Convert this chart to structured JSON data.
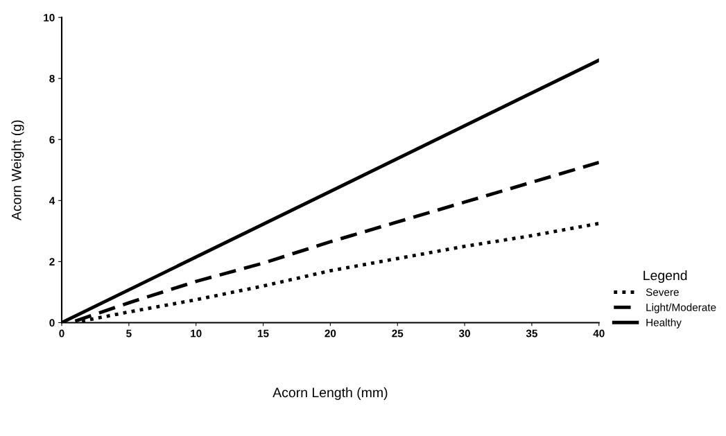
{
  "chart_data": {
    "type": "line",
    "xlabel": "Acorn Length (mm)",
    "ylabel": "Acorn Weight (g)",
    "legend_title": "Legend",
    "xlim": [
      0,
      40
    ],
    "ylim": [
      0,
      10
    ],
    "xticks": [
      0,
      5,
      10,
      15,
      20,
      25,
      30,
      35,
      40
    ],
    "yticks": [
      0,
      2,
      4,
      6,
      8,
      10
    ],
    "grid": false,
    "legend": "bottom right",
    "marker": "none",
    "series": [
      {
        "name": "Severe",
        "color": "#000000",
        "line_style": "dotted",
        "x": [
          1.5,
          5,
          10,
          15,
          20,
          25,
          30,
          35,
          40
        ],
        "values": [
          0.05,
          0.35,
          0.75,
          1.2,
          1.7,
          2.1,
          2.5,
          2.85,
          3.25
        ]
      },
      {
        "name": "Light/Moderate",
        "color": "#000000",
        "line_style": "dashed",
        "x": [
          1,
          5,
          10,
          15,
          20,
          25,
          30,
          35,
          40
        ],
        "values": [
          0.05,
          0.65,
          1.35,
          1.95,
          2.65,
          3.3,
          3.95,
          4.6,
          5.25
        ]
      },
      {
        "name": "Healthy",
        "color": "#000000",
        "line_style": "solid",
        "x": [
          0,
          40
        ],
        "values": [
          0,
          8.6
        ]
      }
    ]
  }
}
